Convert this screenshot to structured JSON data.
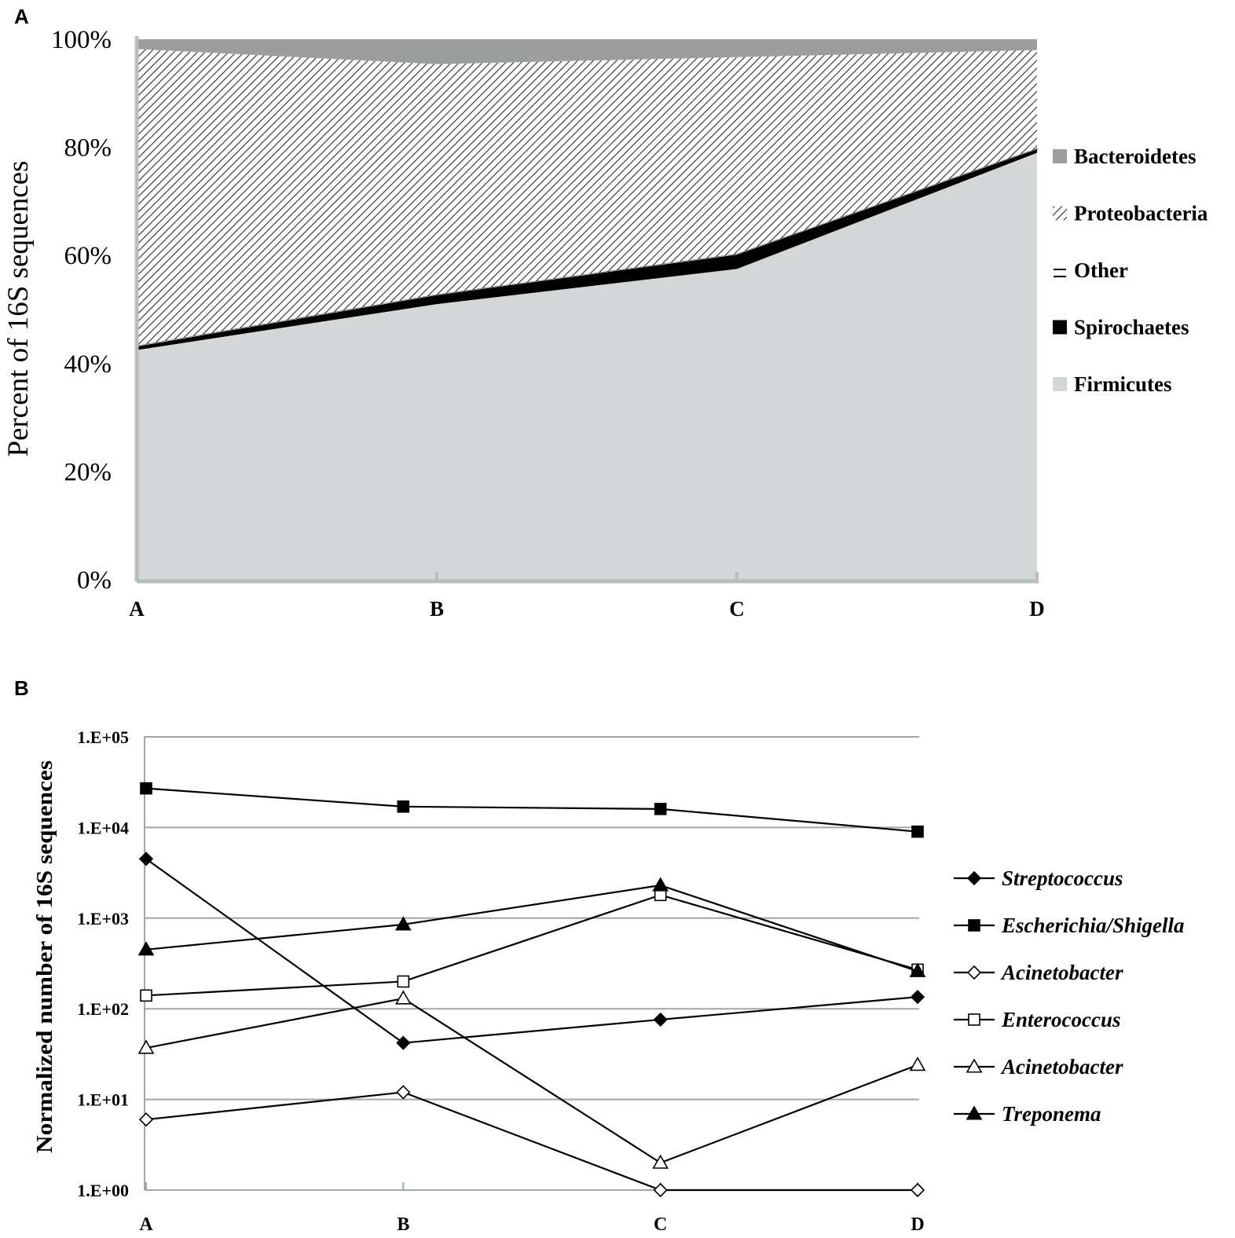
{
  "panels": {
    "a_label": "A",
    "b_label": "B"
  },
  "colors": {
    "bacteroidetes": "#9c9e9e",
    "firmicutes": "#d3d7d7",
    "spirochaetes": "#000000",
    "grid": "#9ea8a8",
    "axis": "#b8bdbd"
  },
  "chart_data": [
    {
      "type": "area",
      "stacked": true,
      "percent": true,
      "categories": [
        "A",
        "B",
        "C",
        "D"
      ],
      "ylabel": "Percent of 16S sequences",
      "ylim": [
        0,
        100
      ],
      "ytick_values": [
        0,
        20,
        40,
        60,
        80,
        100
      ],
      "ytick_labels": [
        "0%",
        "20%",
        "40%",
        "60%",
        "80%",
        "100%"
      ],
      "series": [
        {
          "name": "Firmicutes",
          "values": [
            42.5,
            51,
            57.5,
            79
          ]
        },
        {
          "name": "Spirochaetes",
          "values": [
            0.6,
            1.6,
            2.6,
            0.6
          ]
        },
        {
          "name": "Other",
          "values": [
            0.2,
            0.2,
            0.2,
            0.2
          ]
        },
        {
          "name": "Proteobacteria",
          "values": [
            54.9,
            42.6,
            36.4,
            18.2
          ]
        },
        {
          "name": "Bacteroidetes",
          "values": [
            1.8,
            4.6,
            3.3,
            2.0
          ]
        }
      ],
      "legend_order": [
        "Bacteroidetes",
        "Proteobacteria",
        "Other",
        "Spirochaetes",
        "Firmicutes"
      ],
      "legend": "right"
    },
    {
      "type": "line",
      "yscale": "log",
      "categories": [
        "A",
        "B",
        "C",
        "D"
      ],
      "ylabel": "Normalized number of 16S sequences",
      "ylim": [
        1,
        100000
      ],
      "ytick_values": [
        1,
        10,
        100,
        1000,
        10000,
        100000
      ],
      "ytick_labels": [
        "1.E+00",
        "1.E+01",
        "1.E+02",
        "1.E+03",
        "1.E+04",
        "1.E+05"
      ],
      "grid": true,
      "series": [
        {
          "name": "Streptococcus",
          "marker": "diamond-filled",
          "values": [
            4500,
            42,
            76,
            135
          ]
        },
        {
          "name": "Escherichia/Shigella",
          "marker": "square-filled",
          "values": [
            27000,
            17000,
            16000,
            9000
          ]
        },
        {
          "name": "Acinetobacter",
          "marker": "diamond-open",
          "values": [
            6,
            12,
            1,
            1
          ]
        },
        {
          "name": "Enterococcus",
          "marker": "square-open",
          "values": [
            140,
            200,
            1800,
            270
          ]
        },
        {
          "name": "Acinetobacter",
          "marker": "triangle-open",
          "values": [
            37,
            130,
            2,
            24
          ]
        },
        {
          "name": "Treponema",
          "marker": "triangle-filled",
          "values": [
            450,
            850,
            2300,
            260
          ]
        }
      ],
      "legend": "right"
    }
  ]
}
